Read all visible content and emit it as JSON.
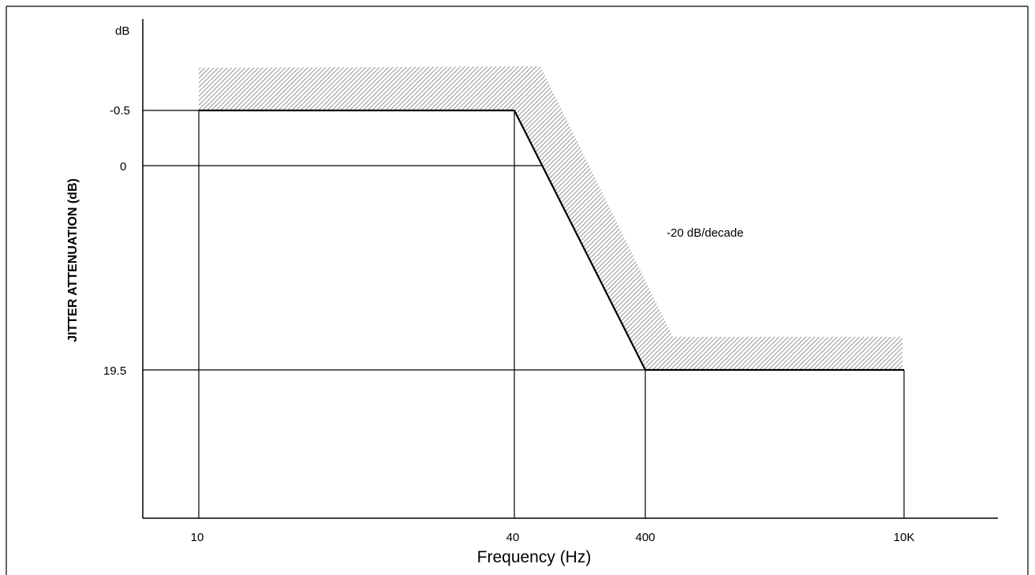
{
  "chart_data": {
    "type": "line",
    "title": "",
    "xlabel": "Frequency (Hz)",
    "ylabel": "JITTER ATTENUATION (dB)",
    "y_unit_label": "dB",
    "x_scale": "categorical",
    "x_ticks": [
      "10",
      "40",
      "400",
      "10K"
    ],
    "y_ticks": [
      "-0.5",
      "0",
      "19.5"
    ],
    "y_direction": "inverted",
    "series": [
      {
        "points": [
          {
            "x": "10",
            "y": -0.5
          },
          {
            "x": "40",
            "y": -0.5
          },
          {
            "x": "400",
            "y": 19.5
          },
          {
            "x": "10K",
            "y": 19.5
          }
        ]
      }
    ],
    "tolerance_band": true,
    "annotations": [
      "-20 dB/decade"
    ],
    "grid": "drop lines at ticks",
    "legend": "none"
  }
}
